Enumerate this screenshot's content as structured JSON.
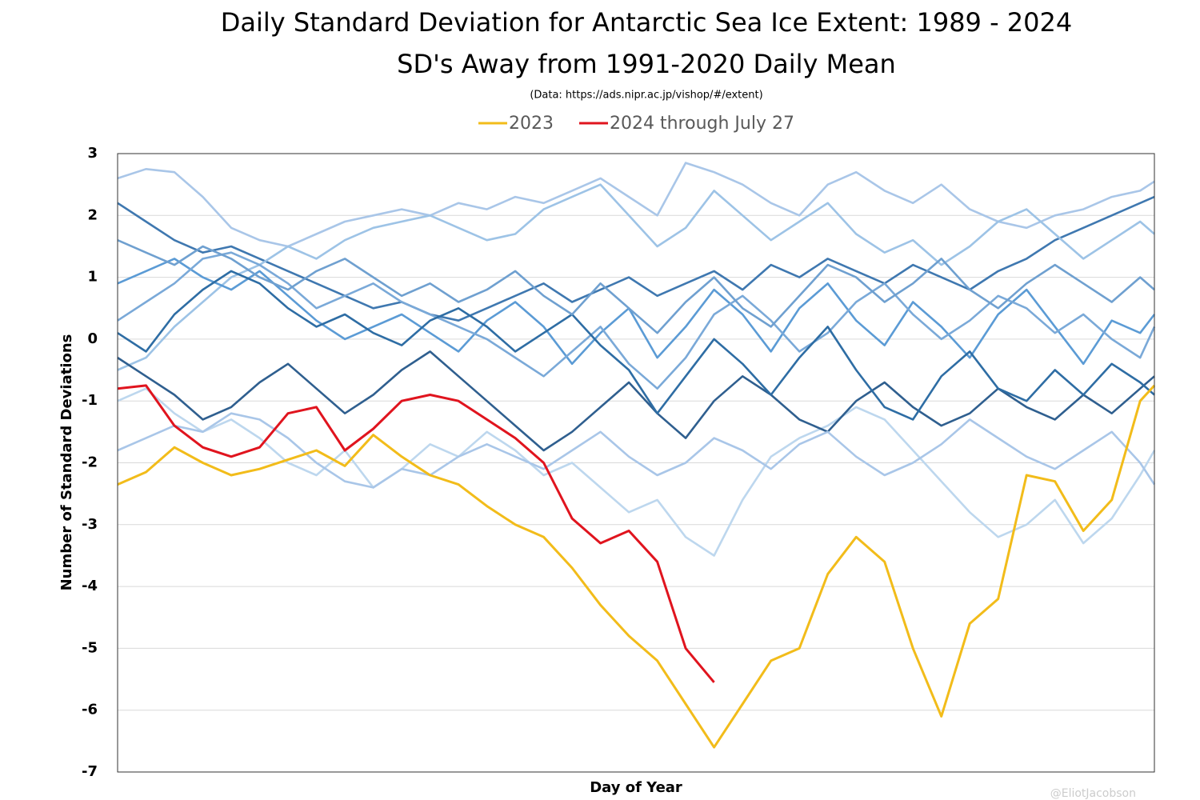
{
  "chart_data": {
    "type": "line",
    "title": "Daily Standard Deviation for Antarctic Sea Ice Extent: 1989 - 2024",
    "subtitle": "SD's Away from 1991-2020 Daily Mean",
    "source": "(Data: https://ads.nipr.ac.jp/vishop/#/extent)",
    "watermark": "@EliotJacobson",
    "x_label": "Day of Year",
    "y_label": "Number of Standard Deviations",
    "xlim": [
      1,
      366
    ],
    "ylim": [
      -7,
      3
    ],
    "yticks": [
      -7,
      -6,
      -5,
      -4,
      -3,
      -2,
      -1,
      0,
      1,
      2,
      3
    ],
    "grid": true,
    "legend": "top",
    "x": [
      1,
      11,
      21,
      31,
      41,
      51,
      61,
      71,
      81,
      91,
      101,
      111,
      121,
      131,
      141,
      151,
      161,
      171,
      181,
      191,
      201,
      211,
      221,
      231,
      241,
      251,
      261,
      271,
      281,
      291,
      301,
      311,
      321,
      331,
      341,
      351,
      361,
      366
    ],
    "series": [
      {
        "color": "#a9c6e8",
        "values": [
          2.6,
          2.75,
          2.7,
          2.3,
          1.8,
          1.6,
          1.5,
          1.7,
          1.9,
          2.0,
          2.1,
          2.0,
          2.2,
          2.1,
          2.3,
          2.2,
          2.4,
          2.6,
          2.3,
          2.0,
          2.85,
          2.7,
          2.5,
          2.2,
          2.0,
          2.5,
          2.7,
          2.4,
          2.2,
          2.5,
          2.1,
          1.9,
          1.8,
          2.0,
          2.1,
          2.3,
          2.4,
          2.55
        ]
      },
      {
        "color": "#3f78b0",
        "values": [
          2.2,
          1.9,
          1.6,
          1.4,
          1.5,
          1.3,
          1.1,
          0.9,
          0.7,
          0.5,
          0.6,
          0.4,
          0.3,
          0.5,
          0.7,
          0.9,
          0.6,
          0.8,
          1.0,
          0.7,
          0.9,
          1.1,
          0.8,
          1.2,
          1.0,
          1.3,
          1.1,
          0.9,
          1.2,
          1.0,
          0.8,
          1.1,
          1.3,
          1.6,
          1.8,
          2.0,
          2.2,
          2.3
        ]
      },
      {
        "color": "#9dc3e6",
        "values": [
          -0.5,
          -0.3,
          0.2,
          0.6,
          1.0,
          1.2,
          1.5,
          1.3,
          1.6,
          1.8,
          1.9,
          2.0,
          1.8,
          1.6,
          1.7,
          2.1,
          2.3,
          2.5,
          2.0,
          1.5,
          1.8,
          2.4,
          2.0,
          1.6,
          1.9,
          2.2,
          1.7,
          1.4,
          1.6,
          1.2,
          1.5,
          1.9,
          2.1,
          1.7,
          1.3,
          1.6,
          1.9,
          1.7
        ]
      },
      {
        "color": "#5b9bd5",
        "values": [
          0.9,
          1.1,
          1.3,
          1.0,
          0.8,
          1.1,
          0.7,
          0.3,
          0.0,
          0.2,
          0.4,
          0.1,
          -0.2,
          0.3,
          0.6,
          0.2,
          -0.4,
          0.1,
          0.5,
          -0.3,
          0.2,
          0.8,
          0.4,
          -0.2,
          0.5,
          0.9,
          0.3,
          -0.1,
          0.6,
          0.2,
          -0.3,
          0.4,
          0.8,
          0.2,
          -0.4,
          0.3,
          0.1,
          0.4
        ]
      },
      {
        "color": "#bdd7ee",
        "values": [
          -1.0,
          -0.8,
          -1.2,
          -1.5,
          -1.3,
          -1.6,
          -2.0,
          -2.2,
          -1.8,
          -2.4,
          -2.1,
          -1.7,
          -1.9,
          -1.5,
          -1.8,
          -2.2,
          -2.0,
          -2.4,
          -2.8,
          -2.6,
          -3.2,
          -3.5,
          -2.6,
          -1.9,
          -1.6,
          -1.4,
          -1.1,
          -1.3,
          -1.8,
          -2.3,
          -2.8,
          -3.2,
          -3.0,
          -2.6,
          -3.3,
          -2.9,
          -2.2,
          -1.8
        ]
      },
      {
        "color": "#2f5f8f",
        "values": [
          -0.3,
          -0.6,
          -0.9,
          -1.3,
          -1.1,
          -0.7,
          -0.4,
          -0.8,
          -1.2,
          -0.9,
          -0.5,
          -0.2,
          -0.6,
          -1.0,
          -1.4,
          -1.8,
          -1.5,
          -1.1,
          -0.7,
          -1.2,
          -1.6,
          -1.0,
          -0.6,
          -0.9,
          -1.3,
          -1.5,
          -1.0,
          -0.7,
          -1.1,
          -1.4,
          -1.2,
          -0.8,
          -1.1,
          -1.3,
          -0.9,
          -1.2,
          -0.8,
          -0.6
        ]
      },
      {
        "color": "#7aa9d8",
        "values": [
          0.3,
          0.6,
          0.9,
          1.3,
          1.4,
          1.2,
          0.9,
          0.5,
          0.7,
          0.9,
          0.6,
          0.4,
          0.2,
          0.0,
          -0.3,
          -0.6,
          -0.2,
          0.2,
          -0.4,
          -0.8,
          -0.3,
          0.4,
          0.7,
          0.3,
          -0.2,
          0.1,
          0.6,
          0.9,
          0.4,
          0.0,
          0.3,
          0.7,
          0.5,
          0.1,
          0.4,
          0.0,
          -0.3,
          0.2
        ]
      },
      {
        "color": "#a9c6e8",
        "values": [
          -1.8,
          -1.6,
          -1.4,
          -1.5,
          -1.2,
          -1.3,
          -1.6,
          -2.0,
          -2.3,
          -2.4,
          -2.1,
          -2.2,
          -1.9,
          -1.7,
          -1.9,
          -2.1,
          -1.8,
          -1.5,
          -1.9,
          -2.2,
          -2.0,
          -1.6,
          -1.8,
          -2.1,
          -1.7,
          -1.5,
          -1.9,
          -2.2,
          -2.0,
          -1.7,
          -1.3,
          -1.6,
          -1.9,
          -2.1,
          -1.8,
          -1.5,
          -2.0,
          -2.35
        ]
      },
      {
        "color": "#2e6da4",
        "values": [
          0.1,
          -0.2,
          0.4,
          0.8,
          1.1,
          0.9,
          0.5,
          0.2,
          0.4,
          0.1,
          -0.1,
          0.3,
          0.5,
          0.2,
          -0.2,
          0.1,
          0.4,
          -0.1,
          -0.5,
          -1.2,
          -0.6,
          0.0,
          -0.4,
          -0.9,
          -0.3,
          0.2,
          -0.5,
          -1.1,
          -1.3,
          -0.6,
          -0.2,
          -0.8,
          -1.0,
          -0.5,
          -0.9,
          -0.4,
          -0.7,
          -0.9
        ]
      },
      {
        "color": "#6fa0d0",
        "values": [
          1.6,
          1.4,
          1.2,
          1.5,
          1.3,
          1.0,
          0.8,
          1.1,
          1.3,
          1.0,
          0.7,
          0.9,
          0.6,
          0.8,
          1.1,
          0.7,
          0.4,
          0.9,
          0.5,
          0.1,
          0.6,
          1.0,
          0.5,
          0.2,
          0.7,
          1.2,
          1.0,
          0.6,
          0.9,
          1.3,
          0.8,
          0.5,
          0.9,
          1.2,
          0.9,
          0.6,
          1.0,
          0.8
        ]
      },
      {
        "name": "2023",
        "color": "#f2bc1a",
        "values": [
          -2.35,
          -2.15,
          -1.75,
          -2.0,
          -2.2,
          -2.1,
          -1.95,
          -1.8,
          -2.05,
          -1.55,
          -1.9,
          -2.2,
          -2.35,
          -2.7,
          -3.0,
          -3.2,
          -3.7,
          -4.3,
          -4.8,
          -5.2,
          -5.9,
          -6.6,
          -5.9,
          -5.2,
          -5.0,
          -3.8,
          -3.2,
          -3.6,
          -5.0,
          -6.1,
          -4.6,
          -4.2,
          -2.2,
          -2.3,
          -3.1,
          -2.6,
          -1.0,
          -0.75
        ]
      },
      {
        "name": "2024 through July 27",
        "color": "#e0141e",
        "values": [
          -0.8,
          -0.75,
          -1.4,
          -1.75,
          -1.9,
          -1.75,
          -1.2,
          -1.1,
          -1.8,
          -1.45,
          -1.0,
          -0.9,
          -1.0,
          -1.3,
          -1.6,
          -2.0,
          -2.9,
          -3.3,
          -3.1,
          -3.6,
          -5.0,
          -5.55,
          null,
          null,
          null,
          null,
          null,
          null,
          null,
          null,
          null,
          null,
          null,
          null,
          null,
          null,
          null,
          null
        ]
      }
    ]
  }
}
